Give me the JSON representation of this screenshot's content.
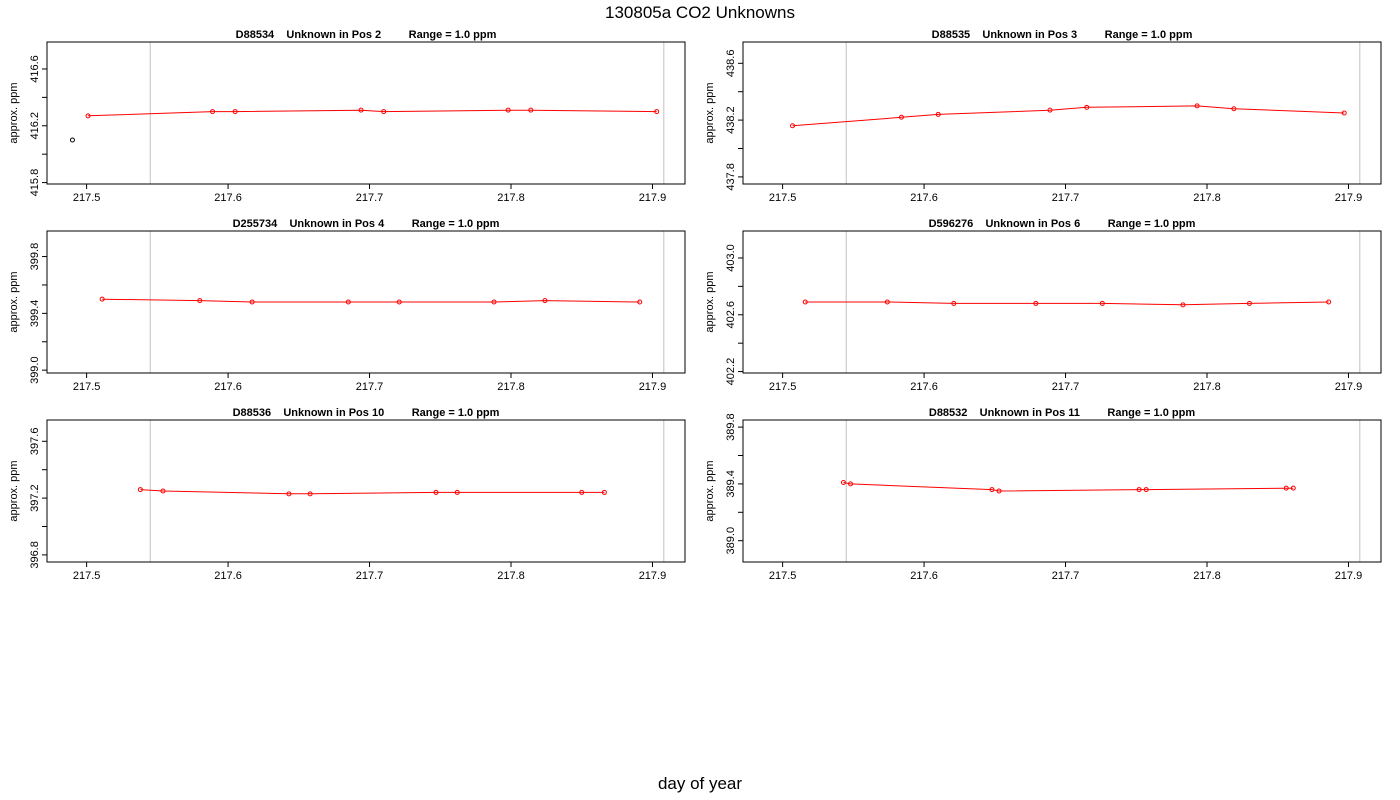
{
  "page": {
    "title": "130805a  CO2 Unknowns",
    "xlabel": "day of year"
  },
  "colors": {
    "series": "#ff0000",
    "point": "#ff0000",
    "outlier": "#000000",
    "refline": "#cccccc"
  },
  "chart_data": [
    {
      "type": "line",
      "title": "D88534    Unknown in Pos 2         Range = 1.0 ppm",
      "xlabel": "",
      "ylabel": "approx. ppm",
      "xlim": [
        217.472,
        217.923
      ],
      "ylim": [
        415.79,
        416.79
      ],
      "xticks": [
        "217.5",
        "217.6",
        "217.7",
        "217.8",
        "217.9"
      ],
      "yticks": [
        "415.8",
        "416.2",
        "416.6"
      ],
      "grid": false,
      "vlines": [
        217.545,
        217.908
      ],
      "points": [
        {
          "x": 217.501,
          "y": 416.27
        },
        {
          "x": 217.589,
          "y": 416.3
        },
        {
          "x": 217.605,
          "y": 416.3
        },
        {
          "x": 217.694,
          "y": 416.31
        },
        {
          "x": 217.71,
          "y": 416.3
        },
        {
          "x": 217.798,
          "y": 416.31
        },
        {
          "x": 217.814,
          "y": 416.31
        },
        {
          "x": 217.903,
          "y": 416.3
        }
      ],
      "outliers": [
        {
          "x": 217.49,
          "y": 416.1
        }
      ]
    },
    {
      "type": "line",
      "title": "D88535    Unknown in Pos 3         Range = 1.0 ppm",
      "xlabel": "",
      "ylabel": "approx. ppm",
      "xlim": [
        217.472,
        217.923
      ],
      "ylim": [
        437.75,
        438.75
      ],
      "xticks": [
        "217.5",
        "217.6",
        "217.7",
        "217.8",
        "217.9"
      ],
      "yticks": [
        "437.8",
        "438.2",
        "438.6"
      ],
      "grid": false,
      "vlines": [
        217.545,
        217.908
      ],
      "points": [
        {
          "x": 217.507,
          "y": 438.16
        },
        {
          "x": 217.584,
          "y": 438.22
        },
        {
          "x": 217.61,
          "y": 438.24
        },
        {
          "x": 217.689,
          "y": 438.27
        },
        {
          "x": 217.715,
          "y": 438.29
        },
        {
          "x": 217.793,
          "y": 438.3
        },
        {
          "x": 217.819,
          "y": 438.28
        },
        {
          "x": 217.897,
          "y": 438.25
        }
      ]
    },
    {
      "type": "line",
      "title": "D255734    Unknown in Pos 4         Range = 1.0 ppm",
      "xlabel": "",
      "ylabel": "approx. ppm",
      "xlim": [
        217.472,
        217.923
      ],
      "ylim": [
        398.98,
        399.98
      ],
      "xticks": [
        "217.5",
        "217.6",
        "217.7",
        "217.8",
        "217.9"
      ],
      "yticks": [
        "399.0",
        "399.4",
        "399.8"
      ],
      "grid": false,
      "vlines": [
        217.545,
        217.908
      ],
      "points": [
        {
          "x": 217.511,
          "y": 399.5
        },
        {
          "x": 217.58,
          "y": 399.49
        },
        {
          "x": 217.617,
          "y": 399.48
        },
        {
          "x": 217.685,
          "y": 399.48
        },
        {
          "x": 217.721,
          "y": 399.48
        },
        {
          "x": 217.788,
          "y": 399.48
        },
        {
          "x": 217.824,
          "y": 399.49
        },
        {
          "x": 217.891,
          "y": 399.48
        }
      ]
    },
    {
      "type": "line",
      "title": "D596276    Unknown in Pos 6         Range = 1.0 ppm",
      "xlabel": "",
      "ylabel": "approx. ppm",
      "xlim": [
        217.472,
        217.923
      ],
      "ylim": [
        402.19,
        403.19
      ],
      "xticks": [
        "217.5",
        "217.6",
        "217.7",
        "217.8",
        "217.9"
      ],
      "yticks": [
        "402.2",
        "402.6",
        "403.0"
      ],
      "grid": false,
      "vlines": [
        217.545,
        217.908
      ],
      "points": [
        {
          "x": 217.516,
          "y": 402.69
        },
        {
          "x": 217.574,
          "y": 402.69
        },
        {
          "x": 217.621,
          "y": 402.68
        },
        {
          "x": 217.679,
          "y": 402.68
        },
        {
          "x": 217.726,
          "y": 402.68
        },
        {
          "x": 217.783,
          "y": 402.67
        },
        {
          "x": 217.83,
          "y": 402.68
        },
        {
          "x": 217.886,
          "y": 402.69
        }
      ]
    },
    {
      "type": "line",
      "title": "D88536    Unknown in Pos 10         Range = 1.0 ppm",
      "xlabel": "",
      "ylabel": "approx. ppm",
      "xlim": [
        217.472,
        217.923
      ],
      "ylim": [
        396.75,
        397.75
      ],
      "xticks": [
        "217.5",
        "217.6",
        "217.7",
        "217.8",
        "217.9"
      ],
      "yticks": [
        "396.8",
        "397.2",
        "397.6"
      ],
      "grid": false,
      "vlines": [
        217.545,
        217.908
      ],
      "points": [
        {
          "x": 217.538,
          "y": 397.26
        },
        {
          "x": 217.554,
          "y": 397.25
        },
        {
          "x": 217.643,
          "y": 397.23
        },
        {
          "x": 217.658,
          "y": 397.23
        },
        {
          "x": 217.747,
          "y": 397.24
        },
        {
          "x": 217.762,
          "y": 397.24
        },
        {
          "x": 217.85,
          "y": 397.24
        },
        {
          "x": 217.866,
          "y": 397.24
        }
      ]
    },
    {
      "type": "line",
      "title": "D88532    Unknown in Pos 11         Range = 1.0 ppm",
      "xlabel": "",
      "ylabel": "approx. ppm",
      "xlim": [
        217.472,
        217.923
      ],
      "ylim": [
        388.85,
        389.85
      ],
      "xticks": [
        "217.5",
        "217.6",
        "217.7",
        "217.8",
        "217.9"
      ],
      "yticks": [
        "389.0",
        "389.4",
        "389.8"
      ],
      "grid": false,
      "vlines": [
        217.545,
        217.908
      ],
      "points": [
        {
          "x": 217.543,
          "y": 389.41
        },
        {
          "x": 217.548,
          "y": 389.4
        },
        {
          "x": 217.648,
          "y": 389.36
        },
        {
          "x": 217.653,
          "y": 389.35
        },
        {
          "x": 217.752,
          "y": 389.36
        },
        {
          "x": 217.757,
          "y": 389.36
        },
        {
          "x": 217.856,
          "y": 389.37
        },
        {
          "x": 217.861,
          "y": 389.37
        }
      ]
    }
  ]
}
